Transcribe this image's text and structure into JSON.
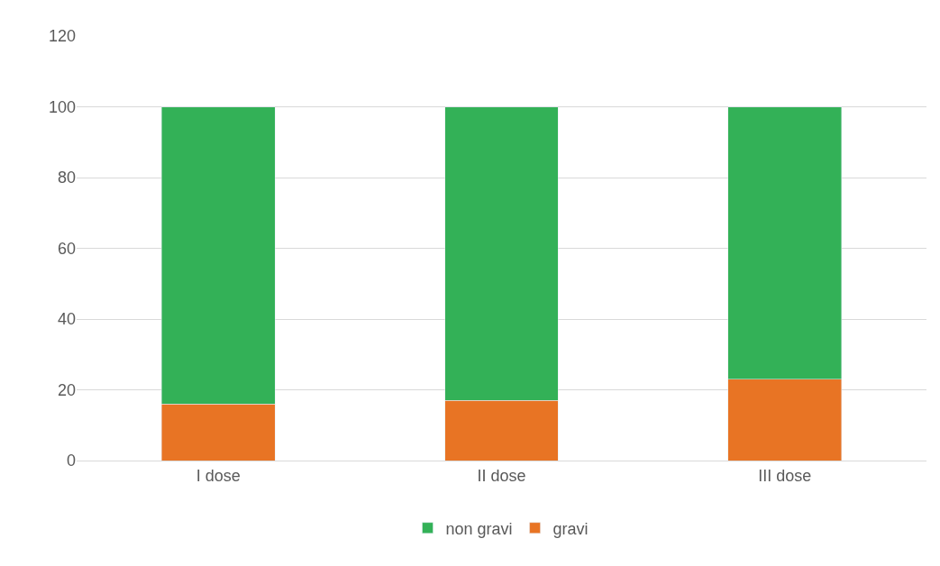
{
  "chart_data": {
    "type": "bar",
    "stacked": true,
    "categories": [
      "I dose",
      "II dose",
      "III dose"
    ],
    "series": [
      {
        "name": "gravi",
        "color": "#e87424",
        "values": [
          16,
          17,
          23
        ]
      },
      {
        "name": "non gravi",
        "color": "#33b157",
        "values": [
          84,
          83,
          77
        ]
      }
    ],
    "ylim": [
      0,
      120
    ],
    "yticks": [
      0,
      20,
      40,
      60,
      80,
      100,
      120
    ],
    "grid": "y",
    "legend": "bottom"
  }
}
